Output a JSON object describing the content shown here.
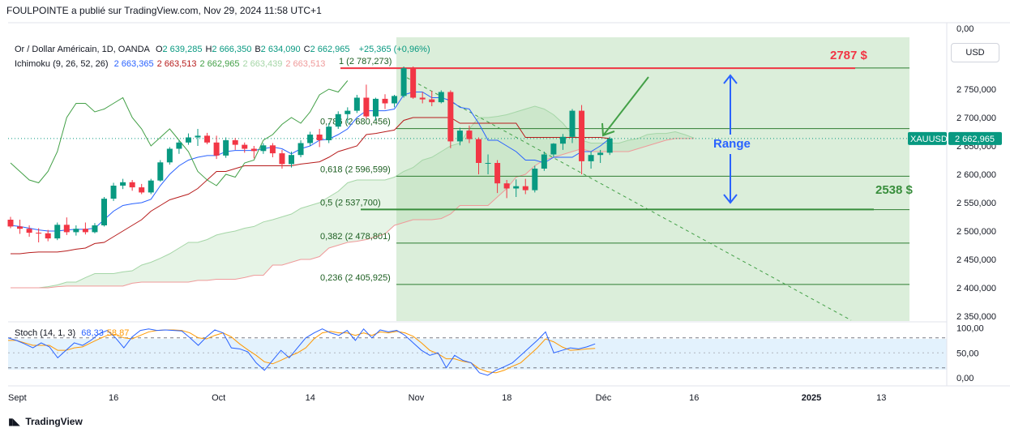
{
  "header": {
    "published": "FOULPOINTE a publié sur TradingView.com, Nov 29, 2024 11:58 UTC+1"
  },
  "legend": {
    "symbol": "Or / Dollar Américain, 1D, OANDA",
    "ohlc": [
      {
        "k": "O",
        "v": "2 639,285"
      },
      {
        "k": "H",
        "v": "2 666,350"
      },
      {
        "k": "B",
        "v": "2 634,090"
      },
      {
        "k": "C",
        "v": "2 662,965"
      }
    ],
    "change": "+25,365 (+0,96%)",
    "ichimoku_label": "Ichimoku (9, 26, 52, 26)",
    "ichimoku_values": [
      "2 663,365",
      "2 663,513",
      "2 662,965",
      "2 663,439",
      "2 663,513"
    ],
    "ichimoku_colors": [
      "#2962ff",
      "#b71c1c",
      "#43a047",
      "#a5d6a7",
      "#ef9a9a"
    ],
    "stoch_label": "Stoch (14, 1, 3)",
    "stoch_values": [
      "68,33",
      "58,87"
    ],
    "stoch_colors": [
      "#2962ff",
      "#ff9800"
    ]
  },
  "currency_button": "USD",
  "branding": "TradingView",
  "chart_data": {
    "type": "candlestick",
    "symbol": "XAUUSD",
    "last_price": 2662.965,
    "last_price_label": "2 662,965",
    "y_ticks": [
      "2 750,000",
      "2 700,000",
      "2 650,000",
      "2 600,000",
      "2 550,000",
      "2 500,000",
      "2 450,000",
      "2 400,000",
      "2 350,000"
    ],
    "y_tick_values": [
      2750,
      2700,
      2650,
      2600,
      2550,
      2500,
      2450,
      2400,
      2350
    ],
    "y_top_label": "0,00",
    "x_ticks": [
      {
        "label": "Sept",
        "bold": false,
        "idx": 0
      },
      {
        "label": "16",
        "bold": false,
        "idx": 11
      },
      {
        "label": "Oct",
        "bold": false,
        "idx": 22
      },
      {
        "label": "14",
        "bold": false,
        "idx": 32
      },
      {
        "label": "Nov",
        "bold": false,
        "idx": 43
      },
      {
        "label": "18",
        "bold": false,
        "idx": 53
      },
      {
        "label": "Déc",
        "bold": false,
        "idx": 63
      },
      {
        "label": "16",
        "bold": false,
        "idx": 73
      },
      {
        "label": "2025",
        "bold": true,
        "idx": 85
      },
      {
        "label": "13",
        "bold": false,
        "idx": 93
      }
    ],
    "candles": [
      [
        2520,
        2525,
        2505,
        2508
      ],
      [
        2508,
        2520,
        2495,
        2504
      ],
      [
        2504,
        2510,
        2490,
        2497
      ],
      [
        2497,
        2505,
        2480,
        2496
      ],
      [
        2496,
        2502,
        2482,
        2487
      ],
      [
        2487,
        2515,
        2484,
        2511
      ],
      [
        2511,
        2524,
        2493,
        2498
      ],
      [
        2498,
        2510,
        2492,
        2504
      ],
      [
        2504,
        2515,
        2494,
        2498
      ],
      [
        2498,
        2514,
        2496,
        2510
      ],
      [
        2510,
        2560,
        2508,
        2557
      ],
      [
        2557,
        2585,
        2553,
        2580
      ],
      [
        2580,
        2592,
        2574,
        2586
      ],
      [
        2586,
        2590,
        2571,
        2577
      ],
      [
        2577,
        2583,
        2565,
        2568
      ],
      [
        2568,
        2592,
        2565,
        2589
      ],
      [
        2589,
        2625,
        2587,
        2621
      ],
      [
        2621,
        2648,
        2617,
        2645
      ],
      [
        2645,
        2660,
        2636,
        2656
      ],
      [
        2656,
        2672,
        2652,
        2665
      ],
      [
        2665,
        2680,
        2650,
        2668
      ],
      [
        2668,
        2673,
        2653,
        2656
      ],
      [
        2656,
        2668,
        2627,
        2633
      ],
      [
        2633,
        2665,
        2629,
        2660
      ],
      [
        2660,
        2664,
        2643,
        2652
      ],
      [
        2652,
        2656,
        2638,
        2645
      ],
      [
        2645,
        2650,
        2628,
        2641
      ],
      [
        2641,
        2655,
        2636,
        2651
      ],
      [
        2651,
        2655,
        2630,
        2637
      ],
      [
        2637,
        2643,
        2610,
        2618
      ],
      [
        2618,
        2640,
        2612,
        2634
      ],
      [
        2634,
        2660,
        2630,
        2655
      ],
      [
        2655,
        2675,
        2650,
        2670
      ],
      [
        2670,
        2680,
        2648,
        2660
      ],
      [
        2660,
        2690,
        2655,
        2684
      ],
      [
        2684,
        2711,
        2680,
        2706
      ],
      [
        2706,
        2718,
        2690,
        2712
      ],
      [
        2712,
        2740,
        2708,
        2735
      ],
      [
        2735,
        2758,
        2698,
        2702
      ],
      [
        2702,
        2735,
        2695,
        2733
      ],
      [
        2733,
        2741,
        2715,
        2725
      ],
      [
        2725,
        2740,
        2718,
        2738
      ],
      [
        2738,
        2790,
        2735,
        2787
      ],
      [
        2787,
        2790,
        2733,
        2735
      ],
      [
        2735,
        2745,
        2725,
        2732
      ],
      [
        2732,
        2747,
        2720,
        2727
      ],
      [
        2727,
        2748,
        2725,
        2745
      ],
      [
        2745,
        2748,
        2646,
        2658
      ],
      [
        2658,
        2682,
        2651,
        2677
      ],
      [
        2677,
        2686,
        2655,
        2662
      ],
      [
        2662,
        2665,
        2600,
        2620
      ],
      [
        2620,
        2635,
        2600,
        2620
      ],
      [
        2620,
        2625,
        2567,
        2584
      ],
      [
        2584,
        2590,
        2558,
        2575
      ],
      [
        2575,
        2591,
        2560,
        2579
      ],
      [
        2579,
        2592,
        2565,
        2572
      ],
      [
        2572,
        2615,
        2568,
        2610
      ],
      [
        2610,
        2640,
        2606,
        2635
      ],
      [
        2635,
        2655,
        2631,
        2654
      ],
      [
        2654,
        2671,
        2643,
        2666
      ],
      [
        2666,
        2715,
        2655,
        2712
      ],
      [
        2712,
        2722,
        2600,
        2623
      ],
      [
        2623,
        2640,
        2610,
        2634
      ],
      [
        2634,
        2643,
        2620,
        2638
      ],
      [
        2638,
        2666,
        2634,
        2663
      ]
    ],
    "tenkan": [
      2510,
      2508,
      2505,
      2502,
      2500,
      2500,
      2502,
      2503,
      2503,
      2505,
      2520,
      2535,
      2545,
      2548,
      2550,
      2556,
      2580,
      2600,
      2615,
      2625,
      2630,
      2633,
      2633,
      2640,
      2642,
      2642,
      2642,
      2645,
      2648,
      2645,
      2636,
      2645,
      2650,
      2660,
      2662,
      2670,
      2680,
      2700,
      2712,
      2712,
      2712,
      2715,
      2740,
      2745,
      2745,
      2735,
      2735,
      2730,
      2718,
      2715,
      2690,
      2660,
      2660,
      2650,
      2640,
      2625,
      2625,
      2620,
      2630,
      2630,
      2630,
      2640,
      2640,
      2650,
      2663
    ],
    "kijun": [
      2460,
      2460,
      2462,
      2463,
      2463,
      2463,
      2465,
      2468,
      2470,
      2478,
      2480,
      2490,
      2500,
      2510,
      2520,
      2535,
      2545,
      2555,
      2560,
      2565,
      2575,
      2590,
      2605,
      2605,
      2610,
      2615,
      2615,
      2615,
      2615,
      2615,
      2615,
      2618,
      2620,
      2622,
      2630,
      2640,
      2645,
      2650,
      2670,
      2672,
      2675,
      2678,
      2695,
      2700,
      2700,
      2700,
      2700,
      2700,
      2690,
      2690,
      2690,
      2690,
      2690,
      2690,
      2690,
      2665,
      2665,
      2665,
      2665,
      2665,
      2665,
      2665,
      2665,
      2665,
      2663
    ],
    "chikou": [
      2620,
      2605,
      2590,
      2585,
      2605,
      2640,
      2700,
      2725,
      2725,
      2710,
      2715,
      2725,
      2735,
      2700,
      2680,
      2650,
      2665,
      2680,
      2660,
      2640,
      2605,
      2590,
      2580,
      2600,
      2595,
      2620,
      2625,
      2660,
      2670,
      2688,
      2700,
      2690,
      2710,
      2740,
      2750,
      2745,
      2765
    ],
    "span_a": [
      2400,
      2400,
      2400,
      2400,
      2402,
      2405,
      2410,
      2410,
      2418,
      2425,
      2425,
      2425,
      2428,
      2430,
      2440,
      2445,
      2452,
      2460,
      2470,
      2480,
      2480,
      2485,
      2493,
      2497,
      2500,
      2505,
      2508,
      2516,
      2520,
      2525,
      2530,
      2540,
      2545,
      2550,
      2560,
      2570,
      2585,
      2590,
      2590,
      2590,
      2590,
      2595,
      2605,
      2612,
      2625,
      2630,
      2640,
      2650,
      2655,
      2680,
      2700,
      2700,
      2702,
      2705,
      2710,
      2715,
      2720,
      2715,
      2705,
      2690,
      2670,
      2660,
      2655,
      2655,
      2655,
      2655,
      2660,
      2663,
      2670,
      2672,
      2672,
      2675,
      2670,
      2664
    ],
    "span_b": [
      2400,
      2400,
      2400,
      2400,
      2400,
      2402,
      2403,
      2403,
      2403,
      2403,
      2403,
      2403,
      2403,
      2408,
      2410,
      2410,
      2410,
      2410,
      2410,
      2410,
      2413,
      2413,
      2415,
      2415,
      2415,
      2418,
      2422,
      2422,
      2440,
      2440,
      2445,
      2450,
      2450,
      2455,
      2470,
      2475,
      2480,
      2482,
      2485,
      2490,
      2495,
      2510,
      2515,
      2520,
      2520,
      2520,
      2522,
      2530,
      2545,
      2545,
      2545,
      2545,
      2560,
      2575,
      2595,
      2600,
      2615,
      2625,
      2630,
      2635,
      2640,
      2645,
      2640,
      2640,
      2640,
      2640,
      2640,
      2645,
      2650,
      2655,
      2660,
      2663,
      2663,
      2663
    ],
    "fib_levels": [
      {
        "label": "1 (2 787,273)",
        "value": 2787.273,
        "color": "#26a69a"
      },
      {
        "label": "0,786 (2 680,456)",
        "value": 2680.456,
        "color": "#26a69a"
      },
      {
        "label": "0,618 (2 596,599)",
        "value": 2596.599,
        "color": "#26a69a"
      },
      {
        "label": "0,5 (2 537,700)",
        "value": 2537.7,
        "color": "#26a69a"
      },
      {
        "label": "0,382 (2 478,801)",
        "value": 2478.801,
        "color": "#26a69a"
      },
      {
        "label": "0,236 (2 405,925)",
        "value": 2405.925,
        "color": "#26a69a"
      }
    ],
    "resistance": {
      "label": "2787 $",
      "value": 2787,
      "color": "#f23645"
    },
    "support": {
      "label": "2538 $",
      "value": 2538,
      "color": "#388e3c"
    },
    "range_label": "Range",
    "range_color": "#2962ff",
    "annotation_arrow_color": "#43a047",
    "stoch": {
      "ticks": [
        "100,00",
        "50,00",
        "0,00"
      ],
      "tick_values": [
        100,
        50,
        0
      ],
      "bands": [
        80,
        20
      ],
      "k": [
        80,
        75,
        68,
        60,
        70,
        62,
        40,
        55,
        70,
        65,
        75,
        88,
        95,
        80,
        60,
        82,
        95,
        98,
        95,
        96,
        95,
        94,
        80,
        65,
        82,
        96,
        90,
        60,
        58,
        52,
        30,
        15,
        35,
        55,
        40,
        60,
        80,
        90,
        98,
        90,
        85,
        95,
        75,
        98,
        80,
        96,
        92,
        95,
        85,
        70,
        55,
        45,
        50,
        20,
        45,
        35,
        30,
        10,
        5,
        15,
        22,
        30,
        45,
        60,
        75,
        92,
        50,
        55,
        60,
        58,
        62,
        68
      ],
      "d": [
        75,
        75,
        70,
        65,
        65,
        65,
        55,
        55,
        60,
        62,
        70,
        78,
        85,
        87,
        80,
        78,
        85,
        92,
        95,
        96,
        96,
        95,
        90,
        80,
        78,
        85,
        90,
        82,
        68,
        56,
        45,
        32,
        28,
        35,
        43,
        50,
        60,
        78,
        90,
        93,
        90,
        90,
        85,
        90,
        85,
        92,
        90,
        93,
        90,
        83,
        70,
        55,
        48,
        38,
        38,
        33,
        30,
        18,
        12,
        10,
        15,
        23,
        30,
        45,
        60,
        78,
        72,
        62,
        55,
        56,
        58,
        59
      ]
    }
  }
}
